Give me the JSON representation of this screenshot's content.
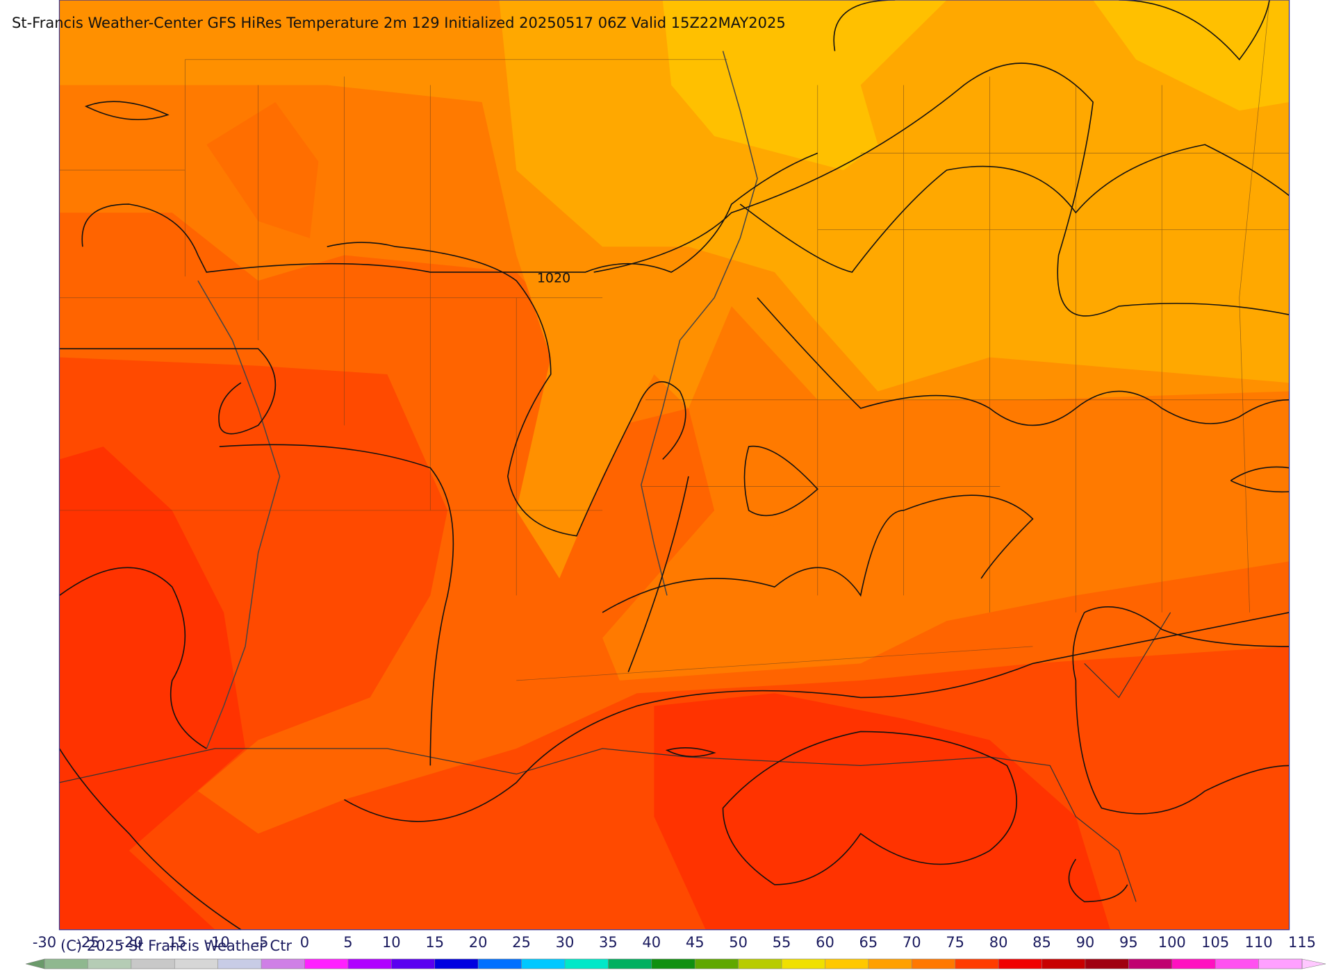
{
  "header": {
    "title": "St-Francis Weather-Center GFS HiRes Temperature 2m  129 Initialized 20250517 06Z Valid 15Z22MAY2025"
  },
  "map": {
    "isobar_label": "1020"
  },
  "colorbar": {
    "ticks": [
      -30,
      -25,
      -20,
      -15,
      -10,
      -5,
      0,
      5,
      10,
      15,
      20,
      25,
      30,
      35,
      40,
      45,
      50,
      55,
      60,
      65,
      70,
      75,
      80,
      85,
      90,
      95,
      100,
      105,
      110,
      115
    ],
    "colors": [
      "#8fb88f",
      "#b5ccb5",
      "#c8c8c8",
      "#d6d6d6",
      "#c8cce6",
      "#cf7fe6",
      "#ff20ff",
      "#b000ff",
      "#5a00f0",
      "#0000e0",
      "#0070ff",
      "#00c8ff",
      "#00e8c8",
      "#00b060",
      "#109010",
      "#60a800",
      "#b8cc00",
      "#f0e000",
      "#ffc800",
      "#ffa000",
      "#ff7800",
      "#ff3c00",
      "#f00000",
      "#c80000",
      "#a00010",
      "#c00070",
      "#ff10c0",
      "#ff50f0",
      "#ffa0ff"
    ]
  },
  "footer": {
    "copyright": "(C) 2025 St Francis Weather Ctr"
  }
}
